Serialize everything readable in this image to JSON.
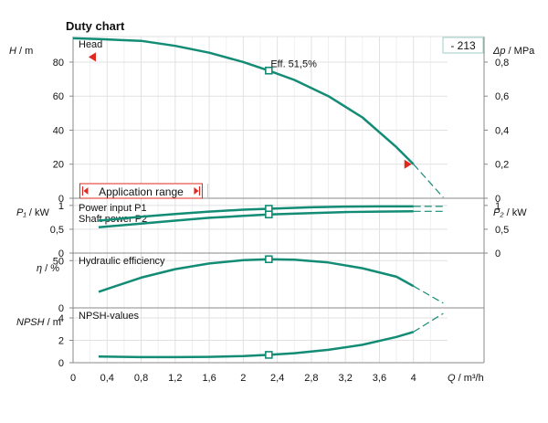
{
  "title": "Duty chart",
  "pump_tag": "- 213",
  "colors": {
    "curve": "#138c76",
    "grid": "#e1e1e1",
    "axis": "#8a8a8a",
    "marker_red": "#e0281e",
    "text": "#111111",
    "tag_border": "#9ccfc4"
  },
  "chart_data": [
    {
      "panel": "head",
      "type": "line",
      "label": "Head",
      "ylabel_left": {
        "symbol": "H",
        "unit": "/ m"
      },
      "ylabel_right": {
        "symbol": "Δp",
        "unit": "/ MPa"
      },
      "yticks_left": [
        "0",
        "20",
        "40",
        "60",
        "80"
      ],
      "yticks_right": [
        "0",
        "0,2",
        "0,4",
        "0,6",
        "0,8"
      ],
      "ylim": [
        0,
        95
      ],
      "right_scale": "0,2 MPa per 20 m",
      "series": [
        {
          "x": [
            0,
            0.3,
            0.8,
            1.2,
            1.6,
            2.0,
            2.3,
            2.6,
            3.0,
            3.4,
            3.8,
            4.0
          ],
          "values": [
            94.0,
            93.5,
            92.5,
            89.5,
            85.5,
            80.0,
            75.0,
            69.5,
            60.0,
            47.5,
            30.0,
            20.0
          ]
        }
      ],
      "extension": {
        "x": [
          4.0,
          4.35
        ],
        "values": [
          20.0,
          0.5
        ]
      },
      "duty_point": {
        "x": 2.3,
        "value": 75.0,
        "label": "Eff.  51,5%"
      },
      "application_range": {
        "label": "Application range",
        "x": [
          0.3,
          4.0
        ]
      }
    },
    {
      "panel": "power",
      "type": "line",
      "ylabel_left": {
        "symbol": "P₁",
        "unit": "/ kW"
      },
      "ylabel_right": {
        "symbol": "P₂",
        "unit": "/ kW"
      },
      "yticks_left": [
        "0",
        "0,5",
        "1"
      ],
      "yticks_right": [
        "0",
        "0,5",
        "1"
      ],
      "ylim": [
        0,
        1.15
      ],
      "series": [
        {
          "name": "Power input P1",
          "x": [
            0.3,
            0.8,
            1.2,
            1.6,
            2.0,
            2.3,
            2.8,
            3.2,
            3.6,
            4.0
          ],
          "values": [
            0.68,
            0.76,
            0.82,
            0.87,
            0.91,
            0.93,
            0.96,
            0.975,
            0.98,
            0.98
          ]
        },
        {
          "name": "Shaft power P2",
          "x": [
            0.3,
            0.8,
            1.2,
            1.6,
            2.0,
            2.3,
            2.8,
            3.2,
            3.6,
            4.0
          ],
          "values": [
            0.54,
            0.62,
            0.68,
            0.74,
            0.78,
            0.81,
            0.84,
            0.86,
            0.87,
            0.875
          ]
        }
      ],
      "duty_point": {
        "x": 2.3,
        "values": [
          0.93,
          0.81
        ]
      }
    },
    {
      "panel": "efficiency",
      "type": "line",
      "label": "Hydraulic efficiency",
      "ylabel_left": {
        "symbol": "η",
        "unit": "/ %"
      },
      "yticks_left": [
        "0",
        "50"
      ],
      "ylim": [
        0,
        58
      ],
      "series": [
        {
          "x": [
            0.3,
            0.8,
            1.2,
            1.6,
            2.0,
            2.3,
            2.6,
            3.0,
            3.4,
            3.8,
            4.0
          ],
          "values": [
            17,
            32,
            41,
            47,
            50.5,
            51.5,
            51,
            48,
            42,
            33,
            23
          ]
        }
      ],
      "extension": {
        "x": [
          4.0,
          4.35
        ],
        "values": [
          23,
          5
        ]
      },
      "duty_point": {
        "x": 2.3,
        "value": 51.5
      }
    },
    {
      "panel": "npsh",
      "type": "line",
      "label": "NPSH-values",
      "ylabel_left": {
        "symbol": "NPSH",
        "unit": "/ m"
      },
      "yticks_left": [
        "0",
        "2",
        "4"
      ],
      "ylim": [
        0,
        4.9
      ],
      "series": [
        {
          "x": [
            0.3,
            0.8,
            1.2,
            1.6,
            2.0,
            2.3,
            2.6,
            3.0,
            3.4,
            3.8,
            4.0
          ],
          "values": [
            0.55,
            0.5,
            0.5,
            0.52,
            0.6,
            0.7,
            0.85,
            1.15,
            1.6,
            2.3,
            2.75
          ]
        }
      ],
      "extension": {
        "x": [
          4.0,
          4.35
        ],
        "values": [
          2.75,
          4.4
        ]
      },
      "duty_point": {
        "x": 2.3,
        "value": 0.7
      }
    }
  ],
  "x_axis": {
    "symbol": "Q",
    "unit": "/ m³/h",
    "xlim": [
      0,
      4.4
    ],
    "ticks": [
      0,
      0.4,
      0.8,
      1.2,
      1.6,
      2.0,
      2.4,
      2.8,
      3.2,
      3.6,
      4.0
    ],
    "tick_labels": [
      "0",
      "0,4",
      "0,8",
      "1,2",
      "1,6",
      "2",
      "2,4",
      "2,8",
      "3,2",
      "3,6",
      "4"
    ]
  }
}
